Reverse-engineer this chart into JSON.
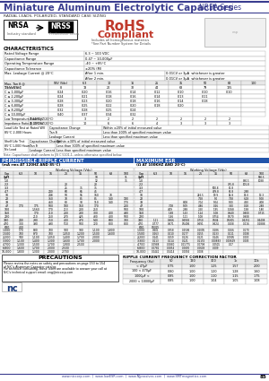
{
  "title": "Miniature Aluminum Electrolytic Capacitors",
  "series": "NRSA Series",
  "subtitle": "RADIAL LEADS, POLARIZED, STANDARD CASE SIZING",
  "rohs_title": "RoHS",
  "rohs_sub": "Compliant",
  "rohs_note1": "Includes all homogeneous materials",
  "rohs_note2": "*See Part Number System for Details",
  "nrsa_label": "NRSA",
  "nrss_label": "NRSS",
  "nrsa_sub": "Industry standard",
  "nrss_sub": "Predecessor series",
  "char_title": "CHARACTERISTICS",
  "tan_header": [
    "WV (Vdc)",
    "6.3",
    "10",
    "16",
    "25",
    "35",
    "50",
    "63",
    "100"
  ],
  "tan_rows": [
    [
      "TS V (V dc)",
      "8",
      "13",
      "20",
      "32",
      "44",
      "63",
      "79",
      "125"
    ],
    [
      "C ≤ 1,000μF",
      "0.24",
      "0.20",
      "0.16",
      "0.14",
      "0.12",
      "0.10",
      "0.10",
      "0.10"
    ],
    [
      "C ≤ 2,200μF",
      "0.24",
      "0.21",
      "0.18",
      "0.16",
      "0.14",
      "0.13",
      "0.11",
      ""
    ],
    [
      "C ≤ 3,300μF",
      "0.28",
      "0.23",
      "0.20",
      "0.18",
      "0.16",
      "0.14",
      "0.18",
      ""
    ],
    [
      "C ≤ 6,800μF",
      "0.28",
      "0.25",
      "0.22",
      "0.20",
      "0.18",
      "0.20",
      "",
      ""
    ],
    [
      "C ≤ 8,200μF",
      "0.32",
      "0.28",
      "0.25",
      "0.24",
      "",
      "",
      "",
      ""
    ],
    [
      "C ≤ 10,000μF",
      "0.40",
      "0.37",
      "0.34",
      "0.32",
      "",
      "",
      "",
      ""
    ]
  ],
  "stability_rows": [
    [
      "Low Temperature Stability\nImpedance Ratio @ 120Hz",
      "Z(-40°C)/Z(20°C)",
      "3",
      "2",
      "2",
      "2",
      "2",
      "2",
      "2"
    ],
    [
      "",
      "Z(-25°C)/Z(20°C)",
      "10",
      "6",
      "6",
      "4",
      "3",
      "3",
      "3"
    ]
  ],
  "load_life_rows": [
    [
      "Capacitance Change",
      "Within ±20% of initial measured value"
    ],
    [
      "Tan δ",
      "Less than 200% of specified maximum value"
    ],
    [
      "Leakage Current",
      "Less than specified maximum value"
    ]
  ],
  "shelf_life_rows": [
    [
      "Capacitance Change",
      "Within ±30% of initial measured value"
    ],
    [
      "Tan δ",
      "Less than 300% of specified maximum value"
    ],
    [
      "Leakage Current",
      "Less than specified maximum value"
    ]
  ],
  "note": "Note: Capacitance shall conform to JIS C 5101-1, unless otherwise specified below.",
  "ripple_title": "PERMISSIBLE RIPPLE CURRENT",
  "ripple_sub": "(mA rms AT 120HZ AND 85°C)",
  "esr_title": "MAXIMUM ESR",
  "esr_sub": "(Ω AT 100KHZ AND 20°C)",
  "wv_cols": [
    "6.3",
    "10",
    "16",
    "25",
    "35",
    "50",
    "63",
    "100"
  ],
  "rip_rows": [
    [
      "0.47",
      "",
      "",
      "",
      "",
      "",
      "10",
      "",
      "11"
    ],
    [
      "1.0",
      "",
      "",
      "",
      "",
      "",
      "12",
      "",
      "35"
    ],
    [
      "2.2",
      "",
      "",
      "",
      "20",
      "",
      "20",
      "",
      ""
    ],
    [
      "3.3",
      "",
      "",
      "",
      "25",
      "35",
      "35",
      "",
      ""
    ],
    [
      "4.7",
      "",
      "",
      "240",
      "60",
      "65",
      "45",
      "",
      ""
    ],
    [
      "10",
      "",
      "",
      "248",
      "50",
      "55",
      "160",
      "70",
      ""
    ],
    [
      "22",
      "",
      "",
      "360",
      "70",
      "85",
      "85",
      "140",
      "190"
    ],
    [
      "33",
      "",
      "",
      "460",
      "80",
      "90",
      "110",
      "140",
      "170"
    ],
    [
      "47",
      "170",
      "175",
      "500",
      "100",
      "160",
      "170",
      "",
      "200"
    ],
    [
      "100",
      "",
      "1,560",
      "170",
      "213",
      "200",
      "250",
      "",
      "500"
    ],
    [
      "150",
      "",
      "170",
      "210",
      "200",
      "280",
      "300",
      "400",
      "490"
    ],
    [
      "220",
      "",
      "210",
      "250",
      "270",
      "425",
      "430",
      "400",
      "500"
    ],
    [
      "330",
      "240",
      "290",
      "350",
      "400",
      "470",
      "540",
      "680",
      "700"
    ],
    [
      "470",
      "300",
      "390",
      "490",
      "510",
      "500",
      "720",
      "800",
      "800"
    ],
    [
      "680",
      "400",
      "",
      "",
      "",
      "",
      "",
      "",
      ""
    ],
    [
      "1,000",
      "570",
      "880",
      "700",
      "900",
      "980",
      "1,100",
      "1,800",
      ""
    ],
    [
      "1,500",
      "700",
      "870",
      "700",
      "1,050",
      "1,200",
      "1,500",
      "1,600",
      ""
    ],
    [
      "2,200",
      "940",
      "1,100",
      "1,050",
      "1,400",
      "1,700",
      "2,000",
      "",
      ""
    ],
    [
      "3,300",
      "1,100",
      "1,400",
      "1,300",
      "1,600",
      "1,700",
      "2,000",
      "",
      ""
    ],
    [
      "4,700",
      "1,300",
      "1,500",
      "1,700",
      "1,900",
      "2,500",
      "",
      "",
      ""
    ],
    [
      "6,800",
      "1,600",
      "1,700",
      "2,000",
      "2,500",
      "",
      "",
      "",
      ""
    ],
    [
      "10,000",
      "1,800",
      "1,300",
      "2,000",
      "2,700",
      "",
      "",
      "",
      ""
    ]
  ],
  "esr_rows": [
    [
      "0.47",
      "",
      "",
      "",
      "",
      "",
      "",
      "",
      "900.5"
    ],
    [
      "1.0",
      "",
      "",
      "",
      "",
      "",
      "",
      "860.5",
      "1038"
    ],
    [
      "2.2",
      "",
      "",
      "",
      "",
      "",
      "735.8",
      "101.8",
      ""
    ],
    [
      "3.3",
      "",
      "",
      "",
      "",
      "500.8",
      "81.8",
      "",
      ""
    ],
    [
      "4.7",
      "",
      "",
      "",
      "",
      "409.8",
      "61.8",
      "2.88",
      ""
    ],
    [
      "10",
      "",
      "",
      "",
      "246.5",
      "19.9",
      "14.8",
      "15.0",
      "13.3"
    ],
    [
      "22",
      "",
      "",
      "",
      "7.58",
      "5.0",
      "7.58",
      "6.18",
      "5.08"
    ],
    [
      "33",
      "",
      "",
      "8.08",
      "7.04",
      "5.04",
      "5.00",
      "4.50",
      "4.08"
    ],
    [
      "47",
      "",
      "7.08",
      "5.09",
      "4.86",
      "0.26",
      "3.50",
      "0.18",
      "2.88"
    ],
    [
      "100",
      "",
      "4.09",
      "2.88",
      "2.50",
      "1.95",
      "1.068",
      "1.98",
      "1.80"
    ],
    [
      "150",
      "",
      "1.88",
      "1.43",
      "1.24",
      "1.08",
      "0.640",
      "0.800",
      "0.715"
    ],
    [
      "220",
      "",
      "1.46",
      "1.21",
      "1.08",
      "0.754",
      "0.570",
      "0.908",
      ""
    ],
    [
      "330",
      "1.11",
      "0.966",
      "0.6905",
      "0.750",
      "0.504",
      "0.5005",
      "0.4251",
      "0.4408"
    ],
    [
      "470",
      "0.777",
      "0.671",
      "0.5406",
      "0.691",
      "0.624",
      "0.208",
      "0.216",
      "0.2888"
    ],
    [
      "680",
      "0.5025",
      "",
      "",
      "",
      "",
      "",
      "",
      ""
    ],
    [
      "1,000",
      "0.601",
      "0.358",
      "0.2506",
      "0.2005",
      "0.186",
      "0.166",
      "0.170",
      ""
    ],
    [
      "1,500",
      "0.263",
      "0.210",
      "0.177",
      "0.155",
      "0.133",
      "0.111",
      "0.008",
      ""
    ],
    [
      "2,200",
      "0.141",
      "0.159",
      "0.126",
      "0.121",
      "0.146",
      "0.0905",
      "0.003",
      ""
    ],
    [
      "3,300",
      "0.113",
      "0.114",
      "0.121",
      "0.1155",
      "0.00883",
      "0.00629",
      "0.005",
      ""
    ],
    [
      "4,700",
      "0.0988",
      "0.0880",
      "0.01775",
      "0.0708",
      "0.0505",
      "0.07",
      "",
      ""
    ],
    [
      "6,800",
      "0.0781",
      "0.0854",
      "0.0650",
      "0.0603",
      "0.009",
      "",
      "",
      ""
    ],
    [
      "10,000",
      "0.0441",
      "0.0414",
      "0.0094",
      "0.008",
      "",
      "",
      "",
      ""
    ]
  ],
  "precaution_title": "PRECAUTIONS",
  "precaution_text1": "Please review the notes on safety and precautions on page 153 to 154",
  "precaution_text2": "of NIC's Aluminum Capacitor catalog.",
  "precaution_text3": "For technical consulting, these icons are available to answer your call at",
  "precaution_text4": "NIC's technical support email: eng@niccorp.com",
  "freq_title": "RIPPLE CURRENT FREQUENCY CORRECTION FACTOR",
  "freq_header": [
    "Frequency (Hz)",
    "50",
    "120",
    "300",
    "1k",
    "10k"
  ],
  "freq_rows": [
    [
      "< 47μF",
      "0.75",
      "1.00",
      "1.25",
      "1.57",
      "2.00"
    ],
    [
      "100 < 470μF",
      "0.80",
      "1.00",
      "1.20",
      "1.28",
      "1.60"
    ],
    [
      "1000μF <",
      "0.85",
      "1.00",
      "1.10",
      "1.15",
      "1.75"
    ],
    [
      "2000 < 10000μF",
      "0.85",
      "1.00",
      "1.04",
      "1.05",
      "1.08"
    ]
  ],
  "footer_url": "www.niccorp.com  |  www.lowESR.com  |  www.NJpassives.com  |  www.SMTmagnetics.com",
  "page_num": "85",
  "blue": "#3a3d8f",
  "light_gray": "#e8e8e8",
  "dark_gray": "#555555",
  "border_color": "#aaaaaa",
  "rohs_red": "#c0392b",
  "section_blue": "#2255aa"
}
